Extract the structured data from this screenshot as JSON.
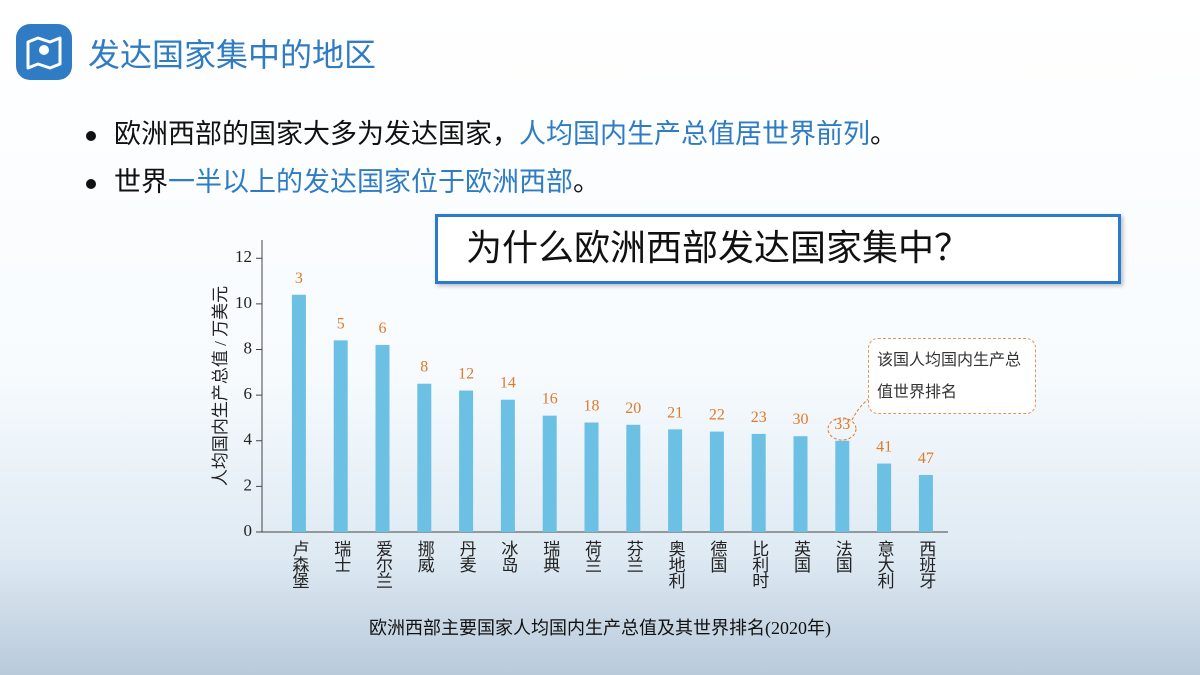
{
  "header": {
    "title": "发达国家集中的地区"
  },
  "bullets": [
    [
      {
        "text": "欧洲西部的国家大多为发达国家，",
        "highlight": false
      },
      {
        "text": "人均国内生产总值居世界前列",
        "highlight": true
      },
      {
        "text": "。",
        "highlight": false
      }
    ],
    [
      {
        "text": "世界",
        "highlight": false
      },
      {
        "text": "一半以上的发达国家位于欧洲西部",
        "highlight": true
      },
      {
        "text": "。",
        "highlight": false
      }
    ]
  ],
  "highlight_color": "#2f7cc4",
  "question": "为什么欧洲西部发达国家集中？",
  "chart_data": {
    "type": "bar",
    "caption": "欧洲西部主要国家人均国内生产总值及其世界排名(2020年)",
    "y_label": "人均国内生产总值 / 万美元",
    "annotation": "该国人均国内生产总值世界排名",
    "categories": [
      "卢森堡",
      "瑞士",
      "爱尔兰",
      "挪威",
      "丹麦",
      "冰岛",
      "瑞典",
      "荷兰",
      "芬兰",
      "奥地利",
      "德国",
      "比利时",
      "英国",
      "法国",
      "意大利",
      "西班牙"
    ],
    "values": [
      10.4,
      8.4,
      8.2,
      6.5,
      6.2,
      5.8,
      5.1,
      4.8,
      4.7,
      4.5,
      4.4,
      4.3,
      4.2,
      4.0,
      3.0,
      2.5
    ],
    "ranks": [
      3,
      5,
      6,
      8,
      12,
      14,
      16,
      18,
      20,
      21,
      22,
      23,
      30,
      33,
      41,
      47
    ],
    "color": "#6cc0e3",
    "rank_color": "#e07b2a",
    "ylim": [
      0,
      12.8
    ],
    "yticks": [
      0,
      2,
      4,
      6,
      8,
      10,
      12
    ]
  }
}
